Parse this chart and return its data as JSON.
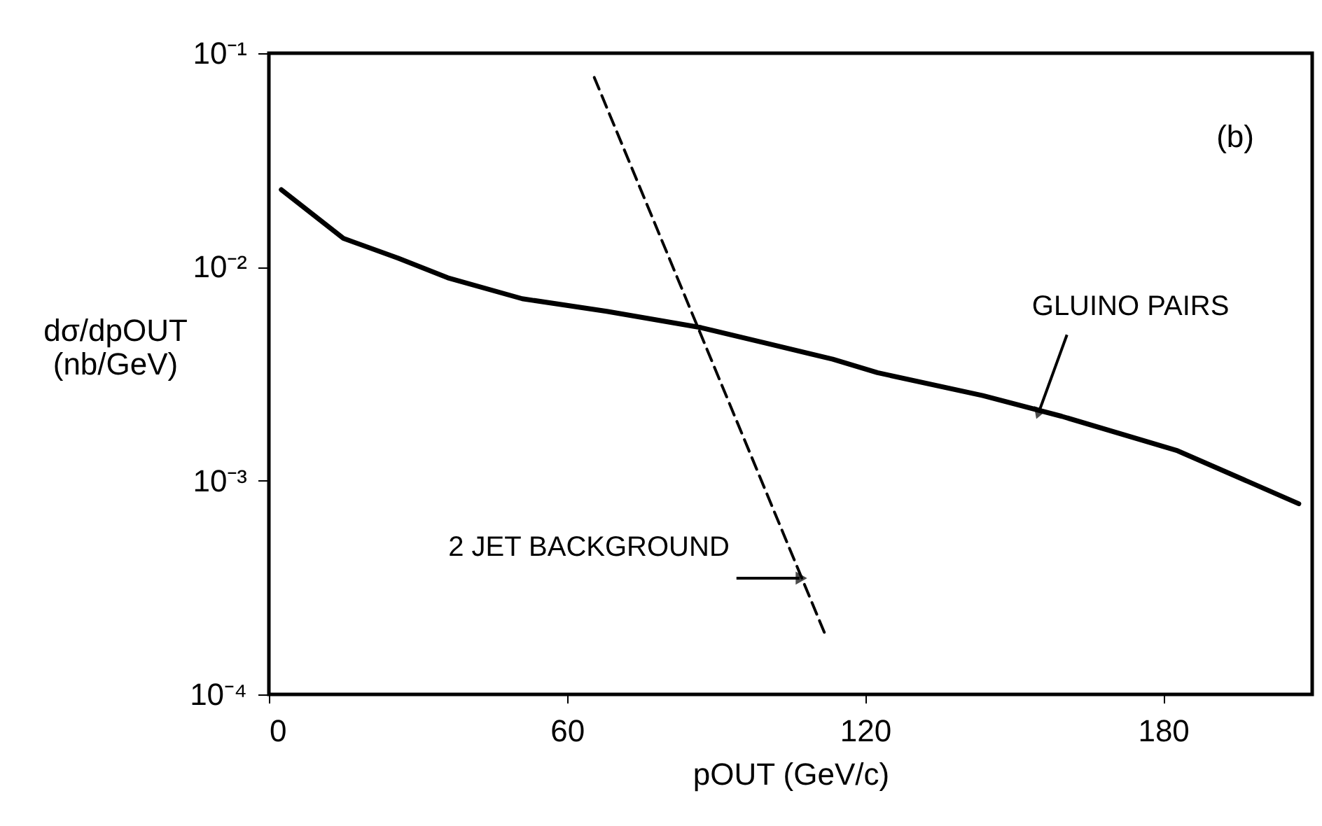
{
  "chart_data": {
    "type": "line",
    "xlabel": "pOUT (GeV/c)",
    "ylabel": [
      "dσ/dpOUT",
      "(nb/GeV)"
    ],
    "log": "y",
    "xlim": [
      0,
      210
    ],
    "xticks": [
      0,
      60,
      120,
      180
    ],
    "ylim": [
      0.0001,
      0.1
    ],
    "yticks": [
      {
        "value": 0.1,
        "label": "10⁻¹"
      },
      {
        "value": 0.01,
        "label": "10⁻²"
      },
      {
        "value": 0.001,
        "label": "10⁻³"
      },
      {
        "value": 0.0001,
        "label": "10⁻⁴"
      }
    ],
    "grid": false,
    "marker": "none",
    "series": [
      {
        "color": "#000000",
        "line_style": "solid",
        "x": [
          2.5,
          15,
          26,
          36,
          51,
          68,
          87,
          100,
          113.5,
          122.5,
          143.7,
          159.6,
          182.9,
          207.3
        ],
        "values": [
          0.023,
          0.0136,
          0.011,
          0.0089,
          0.0071,
          0.0062,
          0.0052,
          0.0044,
          0.0037,
          0.0032,
          0.0025,
          0.002,
          0.00138,
          0.00078
        ]
      },
      {
        "color": "#000000",
        "line_style": "dashed",
        "x": [
          65.5,
          111.8
        ],
        "values": [
          0.077,
          0.000195
        ]
      }
    ],
    "annotations": [
      {
        "text": "GLUINO PAIRS",
        "x": 155,
        "y": 0.0021
      },
      {
        "text": "2 JET BACKGROUND",
        "x": 106.8,
        "y": 0.00035
      },
      "(b)"
    ]
  }
}
